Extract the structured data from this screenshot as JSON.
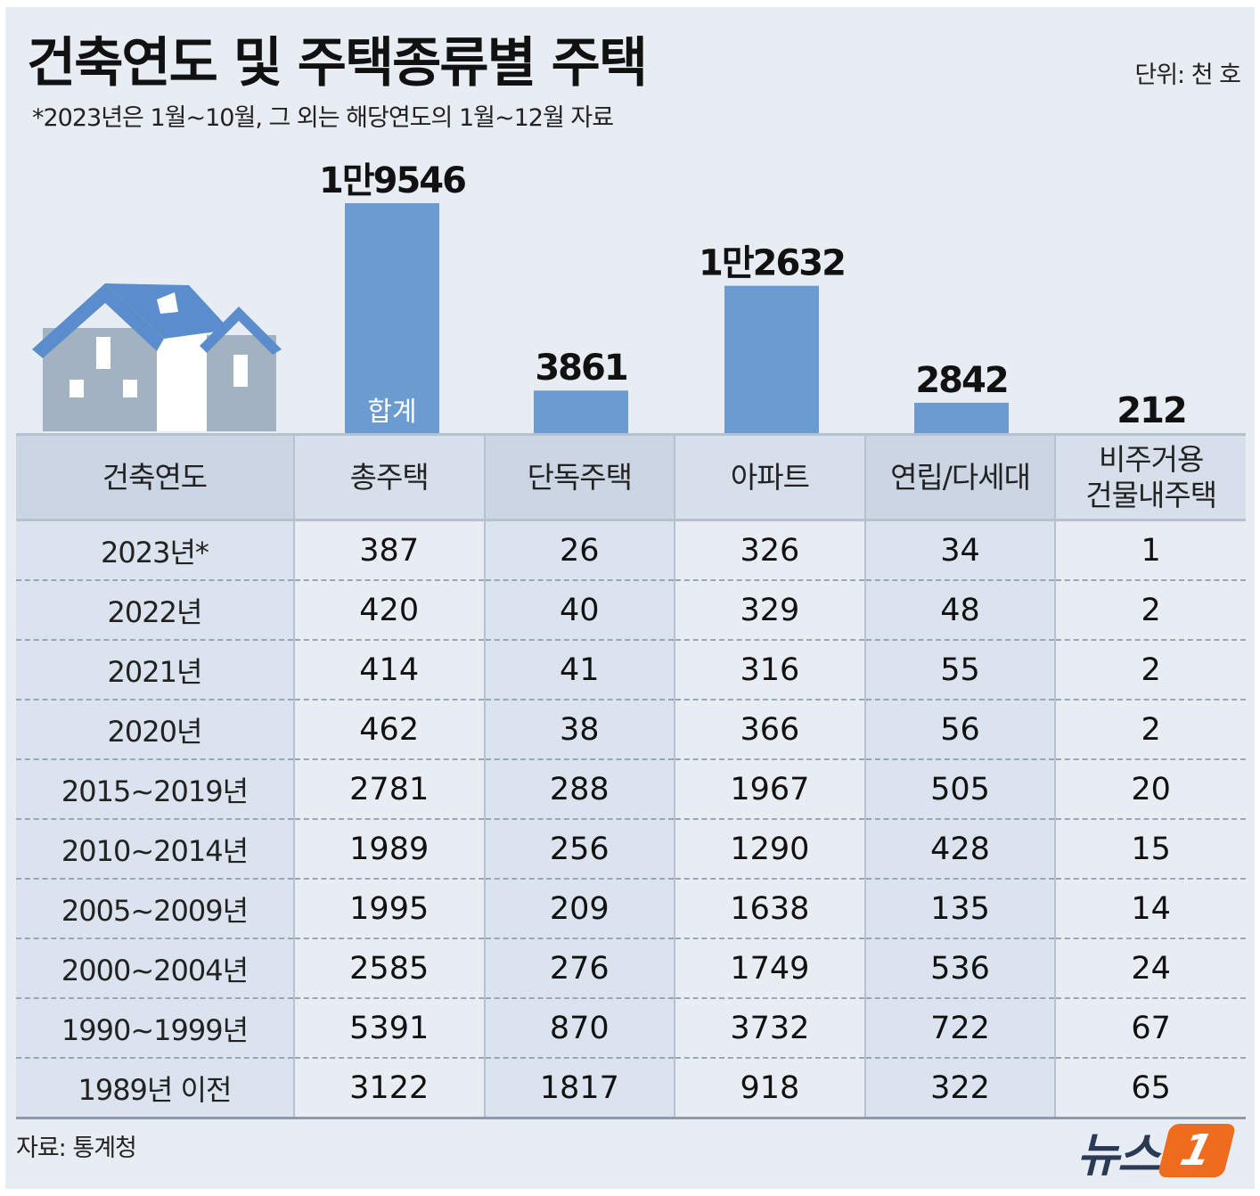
{
  "title": "건축연도 및 주택종류별 주택",
  "subtitle": "*2023년은 1월~10월, 그 외는 해당연도의 1월~12월 자료",
  "unit": "단위: 천 호",
  "source": "자료: 통계청",
  "logo": {
    "text": "뉴스",
    "badge": "1"
  },
  "colors": {
    "bar": "#6b9bd0",
    "background": "#e8edf3",
    "shade": "#dbe3ee",
    "logo_accent": "#ef6b1d"
  },
  "chart_data": {
    "type": "bar",
    "categories": [
      "총주택",
      "단독주택",
      "아파트",
      "연립/다세대",
      "비주거용 건물내주택"
    ],
    "values": [
      19546,
      3861,
      12632,
      2842,
      212
    ],
    "value_labels": [
      "1만9546",
      "3861",
      "1만2632",
      "2842",
      "212"
    ],
    "inside_label": "합계",
    "ylim": [
      0,
      19546
    ]
  },
  "table": {
    "headers": [
      "건축연도",
      "총주택",
      "단독주택",
      "아파트",
      "연립/다세대",
      "비주거용\n건물내주택"
    ],
    "rows": [
      [
        "2023년*",
        "387",
        "26",
        "326",
        "34",
        "1"
      ],
      [
        "2022년",
        "420",
        "40",
        "329",
        "48",
        "2"
      ],
      [
        "2021년",
        "414",
        "41",
        "316",
        "55",
        "2"
      ],
      [
        "2020년",
        "462",
        "38",
        "366",
        "56",
        "2"
      ],
      [
        "2015~2019년",
        "2781",
        "288",
        "1967",
        "505",
        "20"
      ],
      [
        "2010~2014년",
        "1989",
        "256",
        "1290",
        "428",
        "15"
      ],
      [
        "2005~2009년",
        "1995",
        "209",
        "1638",
        "135",
        "14"
      ],
      [
        "2000~2004년",
        "2585",
        "276",
        "1749",
        "536",
        "24"
      ],
      [
        "1990~1999년",
        "5391",
        "870",
        "3732",
        "722",
        "67"
      ],
      [
        "1989년 이전",
        "3122",
        "1817",
        "918",
        "322",
        "65"
      ]
    ]
  }
}
